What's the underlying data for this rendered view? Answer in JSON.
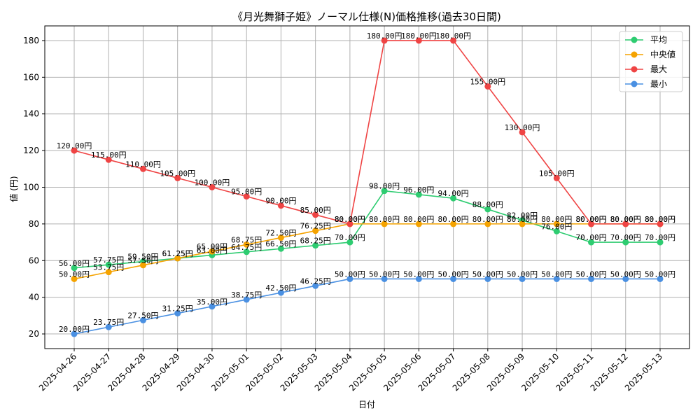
{
  "chart_data": {
    "type": "line",
    "title": "《月光舞獅子姫》ノーマル仕様(N)価格推移(過去30日間)",
    "xlabel": "日付",
    "ylabel": "値 (円)",
    "ylim": [
      12,
      188
    ],
    "yticks": [
      20,
      40,
      60,
      80,
      100,
      120,
      140,
      160,
      180
    ],
    "grid": true,
    "legend_position": "top-right",
    "label_suffix": "円",
    "categories": [
      "2025-04-26",
      "2025-04-27",
      "2025-04-28",
      "2025-04-29",
      "2025-04-30",
      "2025-05-01",
      "2025-05-02",
      "2025-05-03",
      "2025-05-04",
      "2025-05-05",
      "2025-05-06",
      "2025-05-07",
      "2025-05-08",
      "2025-05-09",
      "2025-05-10",
      "2025-05-11",
      "2025-05-12",
      "2025-05-13"
    ],
    "series": [
      {
        "name": "平均",
        "color": "#2ecc71",
        "values": [
          56.0,
          57.75,
          59.5,
          61.25,
          63.0,
          64.75,
          66.5,
          68.25,
          70.0,
          98.0,
          96.0,
          94.0,
          88.0,
          82.0,
          76.0,
          70.0,
          70.0,
          70.0
        ]
      },
      {
        "name": "中央値",
        "color": "#f5a300",
        "values": [
          50.0,
          53.75,
          57.5,
          61.25,
          65.0,
          68.75,
          72.5,
          76.25,
          80.0,
          80.0,
          80.0,
          80.0,
          80.0,
          80.0,
          80.0,
          80.0,
          80.0,
          80.0
        ]
      },
      {
        "name": "最大",
        "color": "#ef4444",
        "values": [
          120.0,
          115.0,
          110.0,
          105.0,
          100.0,
          95.0,
          90.0,
          85.0,
          80.0,
          180.0,
          180.0,
          180.0,
          155.0,
          130.0,
          105.0,
          80.0,
          80.0,
          80.0
        ]
      },
      {
        "name": "最小",
        "color": "#4a90e2",
        "values": [
          20.0,
          23.75,
          27.5,
          31.25,
          35.0,
          38.75,
          42.5,
          46.25,
          50.0,
          50.0,
          50.0,
          50.0,
          50.0,
          50.0,
          50.0,
          50.0,
          50.0,
          50.0
        ]
      }
    ]
  }
}
